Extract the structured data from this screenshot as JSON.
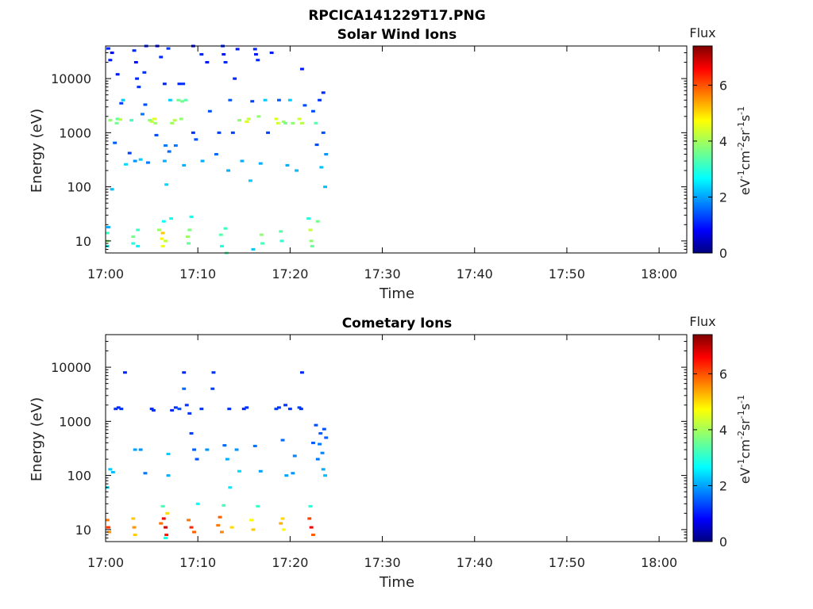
{
  "figure": {
    "title": "RPCICA141229T17.PNG"
  },
  "colors": {
    "jet": [
      "#00007f",
      "#0000ff",
      "#007fff",
      "#00ffff",
      "#7fff7f",
      "#ffff00",
      "#ff7f00",
      "#ff0000",
      "#7f0000"
    ],
    "axis": "#000000",
    "text": "#222222"
  },
  "chart_data": [
    {
      "type": "heatmap",
      "title": "Solar Wind Ions",
      "xlabel": "Time",
      "ylabel": "Energy (eV)",
      "x_unit": "time (minutes after 17:00)",
      "xlim": [
        0,
        63
      ],
      "xticks": [
        0,
        10,
        20,
        30,
        40,
        50,
        60
      ],
      "xtick_labels": [
        "17:00",
        "17:10",
        "17:20",
        "17:30",
        "17:40",
        "17:50",
        "18:00"
      ],
      "ylim": [
        6,
        40000
      ],
      "yscale": "log",
      "yticks": [
        10,
        100,
        1000,
        10000
      ],
      "ytick_labels": [
        "10",
        "100",
        "1000",
        "10000"
      ],
      "colorbar": {
        "title": "Flux",
        "label": "eV-1cm-2sr-1s-1",
        "min": 0,
        "max": 7.4,
        "ticks": [
          0,
          2,
          4,
          6
        ],
        "tick_labels": [
          "0",
          "2",
          "4",
          "6"
        ]
      },
      "data_extent_minutes": [
        0,
        24
      ],
      "cells": [
        [
          0.2,
          10,
          3.8
        ],
        [
          0.2,
          14,
          3.2
        ],
        [
          0.2,
          8,
          2.9
        ],
        [
          0.3,
          18,
          2.2
        ],
        [
          0.3,
          36000,
          1.2
        ],
        [
          0.5,
          1700,
          3.8
        ],
        [
          0.5,
          22000,
          1.1
        ],
        [
          0.7,
          90,
          2.3
        ],
        [
          0.7,
          30000,
          1.0
        ],
        [
          1.0,
          650,
          1.6
        ],
        [
          1.2,
          1500,
          3.6
        ],
        [
          1.3,
          1800,
          3.5
        ],
        [
          1.3,
          12000,
          1.1
        ],
        [
          1.6,
          1750,
          4.1
        ],
        [
          1.7,
          3500,
          1.4
        ],
        [
          1.9,
          4000,
          2.4
        ],
        [
          2.2,
          260,
          2.5
        ],
        [
          2.6,
          420,
          1.4
        ],
        [
          2.8,
          1700,
          3.3
        ],
        [
          3.0,
          12,
          3.6
        ],
        [
          3.0,
          9,
          3.0
        ],
        [
          3.1,
          33000,
          1.2
        ],
        [
          3.2,
          300,
          2.0
        ],
        [
          3.3,
          20000,
          1.0
        ],
        [
          3.4,
          10000,
          1.2
        ],
        [
          3.5,
          16,
          3.2
        ],
        [
          3.5,
          8,
          2.7
        ],
        [
          3.6,
          7000,
          1.3
        ],
        [
          3.8,
          320,
          2.4
        ],
        [
          4.0,
          2200,
          1.8
        ],
        [
          4.2,
          13000,
          1.3
        ],
        [
          4.3,
          3300,
          1.5
        ],
        [
          4.4,
          40000,
          1.2
        ],
        [
          4.6,
          280,
          1.8
        ],
        [
          4.8,
          1700,
          3.7
        ],
        [
          5.0,
          1600,
          4.2
        ],
        [
          5.3,
          1800,
          4.4
        ],
        [
          5.4,
          1500,
          3.9
        ],
        [
          5.5,
          900,
          1.5
        ],
        [
          5.6,
          40000,
          1.0
        ],
        [
          5.8,
          16,
          3.9
        ],
        [
          6.0,
          25000,
          1.2
        ],
        [
          6.1,
          11,
          4.7
        ],
        [
          6.2,
          14,
          5.0
        ],
        [
          6.2,
          8,
          4.5
        ],
        [
          6.3,
          23,
          2.8
        ],
        [
          6.5,
          10,
          4.2
        ],
        [
          6.4,
          8000,
          1.2
        ],
        [
          6.4,
          300,
          2.2
        ],
        [
          6.5,
          580,
          1.8
        ],
        [
          6.6,
          110,
          2.5
        ],
        [
          6.8,
          36000,
          1.3
        ],
        [
          6.9,
          450,
          1.7
        ],
        [
          7.0,
          4000,
          2.4
        ],
        [
          7.1,
          26,
          2.9
        ],
        [
          7.2,
          1500,
          3.9
        ],
        [
          7.5,
          1700,
          4.1
        ],
        [
          7.6,
          580,
          1.8
        ],
        [
          7.9,
          4000,
          3.6
        ],
        [
          8.0,
          8000,
          1.2
        ],
        [
          8.2,
          1800,
          3.8
        ],
        [
          8.3,
          3800,
          3.6
        ],
        [
          8.4,
          8000,
          1.3
        ],
        [
          8.5,
          250,
          2.2
        ],
        [
          8.7,
          4000,
          3.4
        ],
        [
          8.9,
          12,
          3.9
        ],
        [
          9.0,
          9,
          3.5
        ],
        [
          9.1,
          16,
          3.7
        ],
        [
          9.3,
          28,
          2.9
        ],
        [
          9.5,
          1000,
          1.3
        ],
        [
          9.5,
          40000,
          1.0
        ],
        [
          9.8,
          750,
          1.5
        ],
        [
          10.4,
          28000,
          1.2
        ],
        [
          10.5,
          300,
          2.2
        ],
        [
          11.0,
          20000,
          1.1
        ],
        [
          11.3,
          2500,
          1.5
        ],
        [
          12.0,
          400,
          1.7
        ],
        [
          12.3,
          1000,
          1.4
        ],
        [
          12.5,
          13,
          3.4
        ],
        [
          12.6,
          8,
          3.0
        ],
        [
          12.7,
          40000,
          1.2
        ],
        [
          12.8,
          28000,
          1.1
        ],
        [
          13.0,
          20000,
          1.2
        ],
        [
          13.0,
          17,
          3.2
        ],
        [
          13.1,
          6,
          3.4
        ],
        [
          13.3,
          200,
          2.2
        ],
        [
          13.5,
          4000,
          1.6
        ],
        [
          13.8,
          1000,
          1.4
        ],
        [
          14.0,
          10000,
          1.2
        ],
        [
          14.3,
          35000,
          1.1
        ],
        [
          14.5,
          1700,
          3.8
        ],
        [
          14.8,
          300,
          2.2
        ],
        [
          15.3,
          1600,
          4.4
        ],
        [
          15.5,
          1800,
          4.2
        ],
        [
          15.7,
          130,
          2.4
        ],
        [
          15.9,
          3800,
          1.4
        ],
        [
          16.0,
          7,
          2.4
        ],
        [
          16.2,
          35000,
          1.2
        ],
        [
          16.3,
          28000,
          1.1
        ],
        [
          16.5,
          22000,
          1.2
        ],
        [
          16.6,
          2000,
          3.8
        ],
        [
          16.8,
          270,
          2.2
        ],
        [
          16.9,
          13,
          3.8
        ],
        [
          17.0,
          9,
          3.3
        ],
        [
          17.3,
          4000,
          2.4
        ],
        [
          17.6,
          1000,
          1.4
        ],
        [
          18.0,
          30000,
          1.1
        ],
        [
          18.5,
          1800,
          4.4
        ],
        [
          18.7,
          1500,
          4.3
        ],
        [
          18.8,
          4000,
          1.6
        ],
        [
          19.0,
          15,
          3.4
        ],
        [
          19.1,
          10,
          3.1
        ],
        [
          19.3,
          1600,
          3.9
        ],
        [
          19.5,
          1500,
          3.6
        ],
        [
          19.7,
          250,
          2.2
        ],
        [
          20.0,
          4000,
          2.4
        ],
        [
          20.3,
          1500,
          3.8
        ],
        [
          20.7,
          200,
          2.3
        ],
        [
          21.0,
          1800,
          4.3
        ],
        [
          21.3,
          1500,
          4.1
        ],
        [
          21.3,
          15000,
          1.1
        ],
        [
          21.6,
          3200,
          1.5
        ],
        [
          22.0,
          26,
          3.0
        ],
        [
          22.2,
          16,
          4.2
        ],
        [
          22.3,
          10,
          3.8
        ],
        [
          22.4,
          8,
          3.5
        ],
        [
          22.5,
          2500,
          1.5
        ],
        [
          22.8,
          1500,
          3.4
        ],
        [
          22.9,
          600,
          1.5
        ],
        [
          23.0,
          23,
          3.6
        ],
        [
          23.2,
          4000,
          1.3
        ],
        [
          23.4,
          230,
          2.3
        ],
        [
          23.6,
          5500,
          1.2
        ],
        [
          23.8,
          100,
          2.3
        ],
        [
          23.9,
          400,
          2.0
        ],
        [
          23.6,
          1000,
          1.5
        ]
      ]
    },
    {
      "type": "heatmap",
      "title": "Cometary Ions",
      "xlabel": "Time",
      "ylabel": "Energy (eV)",
      "x_unit": "time (minutes after 17:00)",
      "xlim": [
        0,
        63
      ],
      "xticks": [
        0,
        10,
        20,
        30,
        40,
        50,
        60
      ],
      "xtick_labels": [
        "17:00",
        "17:10",
        "17:20",
        "17:30",
        "17:40",
        "17:50",
        "18:00"
      ],
      "ylim": [
        6,
        40000
      ],
      "yscale": "log",
      "yticks": [
        10,
        100,
        1000,
        10000
      ],
      "ytick_labels": [
        "10",
        "100",
        "1000",
        "10000"
      ],
      "colorbar": {
        "title": "Flux",
        "label": "eV-1cm-2sr-1s-1",
        "min": 0,
        "max": 7.4,
        "ticks": [
          0,
          2,
          4,
          6
        ],
        "tick_labels": [
          "0",
          "2",
          "4",
          "6"
        ]
      },
      "data_extent_minutes": [
        0,
        24
      ],
      "cells": [
        [
          0.2,
          15,
          5.6
        ],
        [
          0.3,
          11,
          6.1
        ],
        [
          0.4,
          9,
          5.4
        ],
        [
          0.2,
          60,
          2.6
        ],
        [
          0.5,
          130,
          2.4
        ],
        [
          0.8,
          115,
          2.3
        ],
        [
          1.1,
          1700,
          1.3
        ],
        [
          1.4,
          1800,
          1.2
        ],
        [
          1.7,
          1700,
          1.3
        ],
        [
          2.1,
          8000,
          1.2
        ],
        [
          3.0,
          16,
          5.0
        ],
        [
          3.1,
          11,
          5.4
        ],
        [
          3.2,
          8,
          5.0
        ],
        [
          3.2,
          300,
          2.1
        ],
        [
          3.8,
          300,
          2.0
        ],
        [
          4.3,
          110,
          1.8
        ],
        [
          5.0,
          1700,
          1.2
        ],
        [
          5.2,
          1600,
          1.3
        ],
        [
          6.0,
          13,
          5.7
        ],
        [
          6.3,
          16,
          6.6
        ],
        [
          6.5,
          11,
          6.8
        ],
        [
          6.6,
          8,
          6.3
        ],
        [
          6.2,
          27,
          3.3
        ],
        [
          6.7,
          20,
          4.9
        ],
        [
          6.5,
          7,
          3.0
        ],
        [
          6.8,
          250,
          2.4
        ],
        [
          6.8,
          100,
          2.2
        ],
        [
          7.2,
          1600,
          1.2
        ],
        [
          7.6,
          1800,
          1.3
        ],
        [
          8.0,
          1700,
          1.5
        ],
        [
          8.5,
          4000,
          1.7
        ],
        [
          8.5,
          8000,
          1.2
        ],
        [
          8.8,
          2000,
          1.3
        ],
        [
          9.0,
          15,
          5.6
        ],
        [
          9.3,
          11,
          6.2
        ],
        [
          9.6,
          9,
          5.8
        ],
        [
          9.1,
          1400,
          1.3
        ],
        [
          9.3,
          600,
          1.4
        ],
        [
          9.6,
          300,
          1.6
        ],
        [
          9.9,
          200,
          1.5
        ],
        [
          10.0,
          30,
          2.8
        ],
        [
          10.4,
          1700,
          1.3
        ],
        [
          11.0,
          300,
          2.0
        ],
        [
          11.6,
          4000,
          1.4
        ],
        [
          11.7,
          8000,
          1.3
        ],
        [
          12.2,
          12,
          5.6
        ],
        [
          12.4,
          17,
          5.8
        ],
        [
          12.6,
          9,
          5.5
        ],
        [
          12.8,
          28,
          3.3
        ],
        [
          12.9,
          360,
          1.7
        ],
        [
          13.2,
          200,
          2.2
        ],
        [
          13.4,
          1700,
          1.3
        ],
        [
          13.5,
          60,
          2.6
        ],
        [
          13.7,
          11,
          4.9
        ],
        [
          14.2,
          300,
          2.0
        ],
        [
          14.5,
          120,
          2.5
        ],
        [
          15.0,
          1700,
          1.2
        ],
        [
          15.3,
          1800,
          1.3
        ],
        [
          15.8,
          15,
          4.6
        ],
        [
          16.0,
          10,
          5.0
        ],
        [
          16.2,
          350,
          1.8
        ],
        [
          16.5,
          27,
          3.2
        ],
        [
          16.8,
          120,
          2.1
        ],
        [
          18.5,
          1700,
          1.4
        ],
        [
          18.8,
          1800,
          1.3
        ],
        [
          19.0,
          13,
          5.2
        ],
        [
          19.2,
          16,
          4.9
        ],
        [
          19.3,
          10,
          4.6
        ],
        [
          19.5,
          2000,
          1.3
        ],
        [
          19.6,
          100,
          2.1
        ],
        [
          19.2,
          450,
          1.7
        ],
        [
          20.0,
          1700,
          1.3
        ],
        [
          20.3,
          110,
          2.0
        ],
        [
          20.5,
          230,
          1.9
        ],
        [
          21.0,
          1800,
          1.4
        ],
        [
          21.2,
          1700,
          1.3
        ],
        [
          21.3,
          8000,
          1.2
        ],
        [
          22.1,
          16,
          6.0
        ],
        [
          22.3,
          11,
          6.6
        ],
        [
          22.5,
          8,
          5.8
        ],
        [
          22.2,
          27,
          3.1
        ],
        [
          22.5,
          400,
          1.6
        ],
        [
          22.8,
          850,
          1.5
        ],
        [
          23.0,
          200,
          1.8
        ],
        [
          23.2,
          380,
          1.8
        ],
        [
          23.3,
          600,
          1.6
        ],
        [
          23.5,
          260,
          1.9
        ],
        [
          23.6,
          130,
          2.2
        ],
        [
          23.8,
          100,
          2.3
        ],
        [
          23.9,
          500,
          1.6
        ],
        [
          23.7,
          720,
          1.5
        ]
      ]
    }
  ]
}
